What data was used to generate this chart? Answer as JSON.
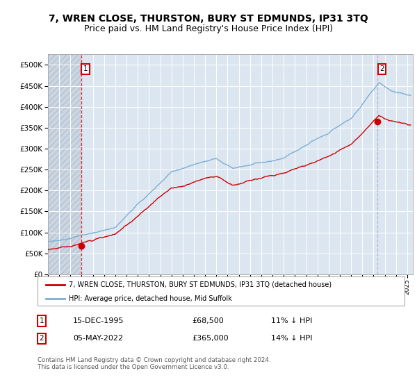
{
  "title": "7, WREN CLOSE, THURSTON, BURY ST EDMUNDS, IP31 3TQ",
  "subtitle": "Price paid vs. HM Land Registry's House Price Index (HPI)",
  "ylim": [
    0,
    525000
  ],
  "yticks": [
    0,
    50000,
    100000,
    150000,
    200000,
    250000,
    300000,
    350000,
    400000,
    450000,
    500000
  ],
  "ytick_labels": [
    "£0",
    "£50K",
    "£100K",
    "£150K",
    "£200K",
    "£250K",
    "£300K",
    "£350K",
    "£400K",
    "£450K",
    "£500K"
  ],
  "xlim_start": 1993.0,
  "xlim_end": 2025.5,
  "sale1_x": 1995.958,
  "sale1_y": 68500,
  "sale1_label": "15-DEC-1995",
  "sale1_price": "£68,500",
  "sale1_hpi": "11% ↓ HPI",
  "sale2_x": 2022.34,
  "sale2_y": 365000,
  "sale2_label": "05-MAY-2022",
  "sale2_price": "£365,000",
  "sale2_hpi": "14% ↓ HPI",
  "property_color": "#cc0000",
  "hpi_color": "#7bafd4",
  "vline2_color": "#aaaacc",
  "legend_property": "7, WREN CLOSE, THURSTON, BURY ST EDMUNDS, IP31 3TQ (detached house)",
  "legend_hpi": "HPI: Average price, detached house, Mid Suffolk",
  "footer": "Contains HM Land Registry data © Crown copyright and database right 2024.\nThis data is licensed under the Open Government Licence v3.0.",
  "background_color": "#ffffff",
  "plot_bg_color": "#dce6f1",
  "hatch_color": "#c8d4e0",
  "grid_color": "#ffffff",
  "title_fontsize": 10,
  "subtitle_fontsize": 9
}
